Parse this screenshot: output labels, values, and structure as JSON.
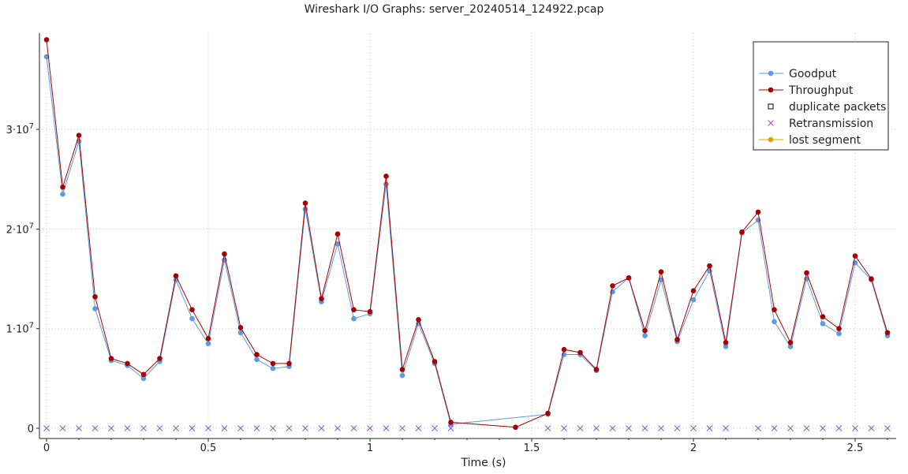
{
  "chart_data": {
    "type": "line",
    "title": "Wireshark I/O Graphs: server_20240514_124922.pcap",
    "xlabel": "Time (s)",
    "ylabel": "",
    "xlim": [
      0,
      2.62
    ],
    "ylim": [
      0,
      40000000.0
    ],
    "x_ticks": [
      {
        "v": 0,
        "label": "0"
      },
      {
        "v": 0.5,
        "label": "0.5"
      },
      {
        "v": 1,
        "label": "1"
      },
      {
        "v": 1.5,
        "label": "1.5"
      },
      {
        "v": 2,
        "label": "2"
      },
      {
        "v": 2.5,
        "label": "2.5"
      }
    ],
    "y_ticks": [
      {
        "v": 0,
        "label": "0",
        "exp": ""
      },
      {
        "v": 10000000,
        "label": "1·10",
        "exp": "7"
      },
      {
        "v": 20000000,
        "label": "2·10",
        "exp": "7"
      },
      {
        "v": 30000000,
        "label": "3·10",
        "exp": "7"
      }
    ],
    "grid": true,
    "legend_position": "top-right",
    "series": [
      {
        "name": "Goodput",
        "color": "#5b9be0",
        "marker": "dot",
        "points": [
          [
            0,
            37300000
          ],
          [
            0.05,
            23500000
          ],
          [
            0.1,
            28800000
          ],
          [
            0.15,
            12000000
          ],
          [
            0.2,
            6800000
          ],
          [
            0.25,
            6300000
          ],
          [
            0.3,
            5000000
          ],
          [
            0.35,
            6700000
          ],
          [
            0.4,
            14900000
          ],
          [
            0.45,
            11000000
          ],
          [
            0.5,
            8500000
          ],
          [
            0.55,
            16900000
          ],
          [
            0.6,
            9600000
          ],
          [
            0.65,
            6900000
          ],
          [
            0.7,
            6000000
          ],
          [
            0.75,
            6200000
          ],
          [
            0.8,
            22000000
          ],
          [
            0.85,
            12700000
          ],
          [
            0.9,
            18500000
          ],
          [
            0.95,
            11000000
          ],
          [
            1.0,
            11500000
          ],
          [
            1.05,
            24500000
          ],
          [
            1.1,
            5300000
          ],
          [
            1.15,
            10500000
          ],
          [
            1.2,
            6500000
          ],
          [
            1.25,
            400000
          ],
          [
            1.55,
            1400000
          ],
          [
            1.6,
            7400000
          ],
          [
            1.65,
            7400000
          ],
          [
            1.7,
            5800000
          ],
          [
            1.75,
            13700000
          ],
          [
            1.8,
            15100000
          ],
          [
            1.85,
            9300000
          ],
          [
            1.9,
            14900000
          ],
          [
            1.95,
            8700000
          ],
          [
            2.0,
            12900000
          ],
          [
            2.05,
            15800000
          ],
          [
            2.1,
            8200000
          ],
          [
            2.15,
            19600000
          ],
          [
            2.2,
            20900000
          ],
          [
            2.25,
            10700000
          ],
          [
            2.3,
            8200000
          ],
          [
            2.35,
            15000000
          ],
          [
            2.4,
            10500000
          ],
          [
            2.45,
            9500000
          ],
          [
            2.5,
            16600000
          ],
          [
            2.55,
            14900000
          ],
          [
            2.6,
            9300000
          ]
        ]
      },
      {
        "name": "Throughput",
        "color": "#a80000",
        "marker": "dot",
        "points": [
          [
            0,
            39000000
          ],
          [
            0.05,
            24200000
          ],
          [
            0.1,
            29400000
          ],
          [
            0.15,
            13200000
          ],
          [
            0.2,
            7000000
          ],
          [
            0.25,
            6500000
          ],
          [
            0.3,
            5400000
          ],
          [
            0.35,
            7000000
          ],
          [
            0.4,
            15300000
          ],
          [
            0.45,
            11900000
          ],
          [
            0.5,
            9000000
          ],
          [
            0.55,
            17500000
          ],
          [
            0.6,
            10100000
          ],
          [
            0.65,
            7400000
          ],
          [
            0.7,
            6500000
          ],
          [
            0.75,
            6500000
          ],
          [
            0.8,
            22600000
          ],
          [
            0.85,
            13000000
          ],
          [
            0.9,
            19500000
          ],
          [
            0.95,
            11900000
          ],
          [
            1.0,
            11700000
          ],
          [
            1.05,
            25300000
          ],
          [
            1.1,
            5900000
          ],
          [
            1.15,
            10900000
          ],
          [
            1.2,
            6700000
          ],
          [
            1.25,
            600000
          ],
          [
            1.45,
            100000
          ],
          [
            1.55,
            1500000
          ],
          [
            1.6,
            7900000
          ],
          [
            1.65,
            7600000
          ],
          [
            1.7,
            5900000
          ],
          [
            1.75,
            14300000
          ],
          [
            1.8,
            15100000
          ],
          [
            1.85,
            9800000
          ],
          [
            1.9,
            15700000
          ],
          [
            1.95,
            8900000
          ],
          [
            2.0,
            13800000
          ],
          [
            2.05,
            16300000
          ],
          [
            2.1,
            8600000
          ],
          [
            2.15,
            19700000
          ],
          [
            2.2,
            21700000
          ],
          [
            2.25,
            11900000
          ],
          [
            2.3,
            8600000
          ],
          [
            2.35,
            15600000
          ],
          [
            2.4,
            11200000
          ],
          [
            2.45,
            10000000
          ],
          [
            2.5,
            17300000
          ],
          [
            2.55,
            15000000
          ],
          [
            2.6,
            9600000
          ]
        ]
      },
      {
        "name": "duplicate packets",
        "color": "#000000",
        "marker": "square",
        "points": []
      },
      {
        "name": "Retransmission",
        "color": "#9955dd",
        "marker": "cross",
        "points": [
          [
            0,
            0
          ],
          [
            0.05,
            0
          ],
          [
            0.1,
            0
          ],
          [
            0.15,
            0
          ],
          [
            0.2,
            0
          ],
          [
            0.25,
            0
          ],
          [
            0.3,
            0
          ],
          [
            0.35,
            0
          ],
          [
            0.4,
            0
          ],
          [
            0.45,
            0
          ],
          [
            0.5,
            0
          ],
          [
            0.55,
            0
          ],
          [
            0.6,
            0
          ],
          [
            0.65,
            0
          ],
          [
            0.7,
            0
          ],
          [
            0.75,
            0
          ],
          [
            0.8,
            0
          ],
          [
            0.85,
            0
          ],
          [
            0.9,
            0
          ],
          [
            0.95,
            0
          ],
          [
            1.0,
            0
          ],
          [
            1.05,
            0
          ],
          [
            1.1,
            0
          ],
          [
            1.15,
            0
          ],
          [
            1.2,
            0
          ],
          [
            1.25,
            0
          ],
          [
            1.55,
            0
          ],
          [
            1.6,
            0
          ],
          [
            1.65,
            0
          ],
          [
            1.7,
            0
          ],
          [
            1.75,
            0
          ],
          [
            1.8,
            0
          ],
          [
            1.85,
            0
          ],
          [
            1.9,
            0
          ],
          [
            1.95,
            0
          ],
          [
            2.0,
            0
          ],
          [
            2.05,
            0
          ],
          [
            2.1,
            0
          ],
          [
            2.2,
            0
          ],
          [
            2.25,
            0
          ],
          [
            2.3,
            0
          ],
          [
            2.35,
            0
          ],
          [
            2.4,
            0
          ],
          [
            2.45,
            0
          ],
          [
            2.5,
            0
          ],
          [
            2.55,
            0
          ],
          [
            2.6,
            0
          ]
        ]
      },
      {
        "name": "lost segment",
        "color": "#e0a000",
        "marker": "dot",
        "points": []
      }
    ]
  }
}
